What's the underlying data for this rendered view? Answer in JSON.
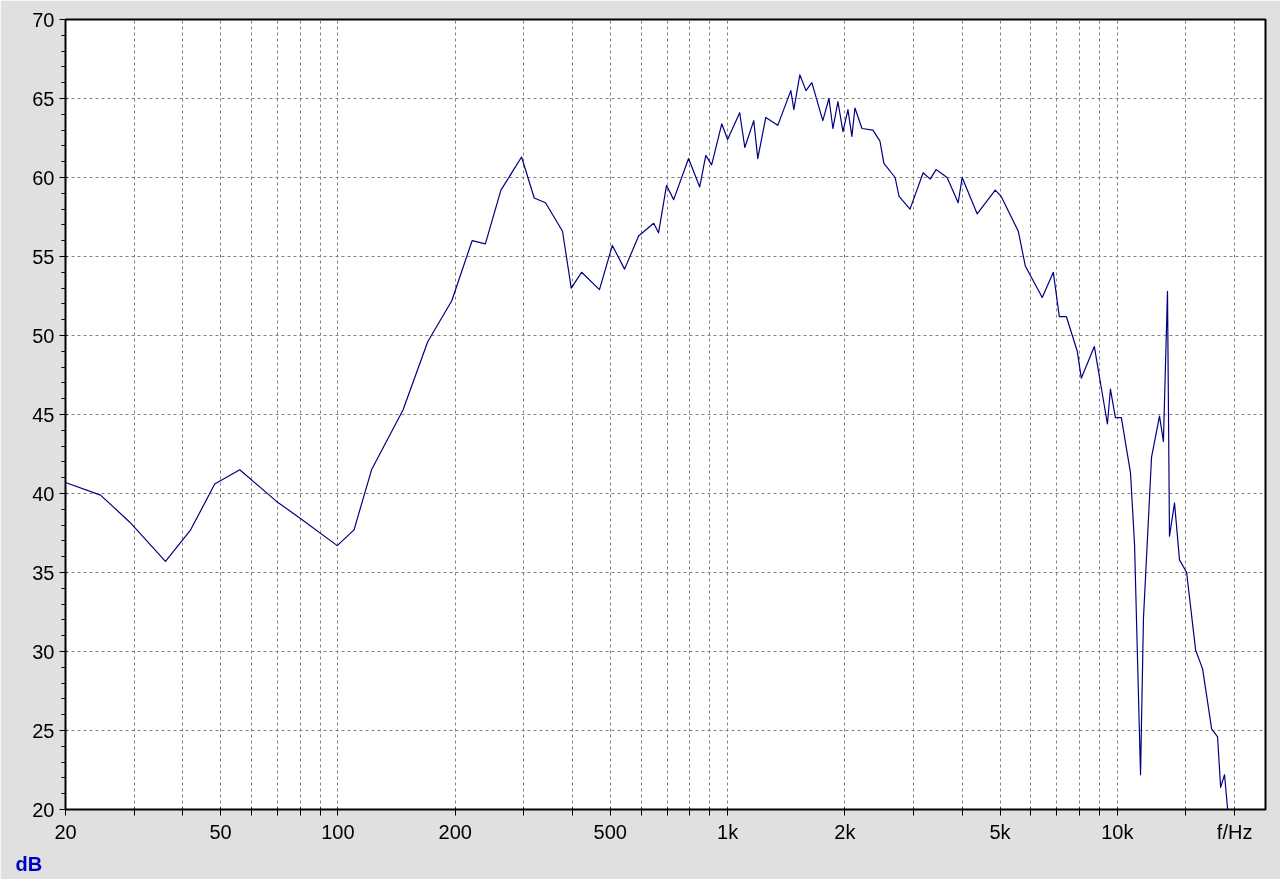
{
  "chart_data": {
    "type": "line",
    "xlabel": "f/Hz",
    "ylabel": "dB",
    "log": "x",
    "grid": true,
    "line_style": "solid",
    "xlim": [
      20,
      24000
    ],
    "ylim": [
      20,
      70
    ],
    "xticks": [
      20,
      {
        "value": 30,
        "label": null
      },
      {
        "value": 40,
        "label": null
      },
      50,
      {
        "value": 60,
        "label": null
      },
      {
        "value": 70,
        "label": null
      },
      {
        "value": 80,
        "label": null
      },
      {
        "value": 90,
        "label": null
      },
      100,
      200,
      {
        "value": 300,
        "label": null
      },
      {
        "value": 400,
        "label": null
      },
      500,
      {
        "value": 600,
        "label": null
      },
      {
        "value": 700,
        "label": null
      },
      {
        "value": 800,
        "label": null
      },
      {
        "value": 900,
        "label": null
      },
      {
        "value": 1000,
        "label": "1k"
      },
      {
        "value": 2000,
        "label": "2k"
      },
      {
        "value": 3000,
        "label": null
      },
      {
        "value": 4000,
        "label": null
      },
      {
        "value": 5000,
        "label": "5k"
      },
      {
        "value": 6000,
        "label": null
      },
      {
        "value": 7000,
        "label": null
      },
      {
        "value": 8000,
        "label": null
      },
      {
        "value": 9000,
        "label": null
      },
      {
        "value": 10000,
        "label": "10k"
      },
      {
        "value": 15000,
        "label": null
      },
      {
        "value": 20000,
        "label": null
      }
    ],
    "yticks": [
      20,
      25,
      30,
      35,
      40,
      45,
      50,
      55,
      60,
      65,
      70
    ],
    "series": [
      {
        "color": "#000080",
        "x": [
          20,
          24.6,
          29.2,
          36.1,
          41.9,
          48.3,
          56,
          69.6,
          80.3,
          99.6,
          110,
          122,
          147,
          170,
          196,
          221,
          239,
          262,
          296,
          319,
          341,
          377,
          397,
          422,
          469,
          506,
          544,
          591,
          646,
          665,
          697,
          727,
          794,
          848,
          879,
          910,
          966,
          1000,
          1074,
          1107,
          1167,
          1195,
          1253,
          1345,
          1453,
          1479,
          1532,
          1589,
          1645,
          1755,
          1820,
          1863,
          1919,
          1977,
          2036,
          2084,
          2122,
          2212,
          2360,
          2460,
          2518,
          2690,
          2754,
          2938,
          3175,
          3310,
          3427,
          3658,
          3905,
          3998,
          4368,
          4862,
          5035,
          5570,
          5806,
          6417,
          6851,
          7098,
          7398,
          7893,
          8083,
          8730,
          9432,
          9600,
          9886,
          10240,
          10810,
          11070,
          11470,
          11670,
          12240,
          12830,
          13130,
          13450,
          13610,
          14020,
          14440,
          15060,
          15880,
          16550,
          17460,
          18080,
          18410,
          18840,
          19190
        ],
        "values": [
          40.7,
          39.9,
          38.2,
          35.7,
          37.7,
          40.6,
          41.5,
          39.5,
          38.4,
          36.7,
          37.7,
          41.5,
          45.3,
          49.6,
          52.2,
          56.0,
          55.8,
          59.2,
          61.3,
          58.7,
          58.4,
          56.6,
          53.0,
          54.0,
          52.9,
          55.7,
          54.2,
          56.3,
          57.1,
          56.5,
          59.5,
          58.6,
          61.2,
          59.4,
          61.4,
          60.8,
          63.4,
          62.4,
          64.1,
          61.9,
          63.6,
          61.2,
          63.8,
          63.3,
          65.5,
          64.3,
          66.5,
          65.5,
          66.0,
          63.6,
          65.0,
          63.1,
          64.8,
          62.9,
          64.3,
          62.6,
          64.4,
          63.1,
          63.0,
          62.3,
          60.9,
          60.0,
          58.8,
          58.0,
          60.3,
          59.9,
          60.5,
          60.0,
          58.4,
          60.0,
          57.7,
          59.2,
          58.8,
          56.6,
          54.4,
          52.4,
          54.0,
          51.2,
          51.2,
          49.0,
          47.3,
          49.3,
          44.4,
          46.6,
          44.8,
          44.8,
          41.3,
          36.8,
          22.2,
          32.1,
          42.3,
          44.9,
          43.3,
          52.8,
          37.3,
          39.4,
          35.8,
          35.0,
          30.1,
          28.9,
          25.1,
          24.6,
          21.4,
          22.2,
          20.0
        ]
      }
    ]
  }
}
